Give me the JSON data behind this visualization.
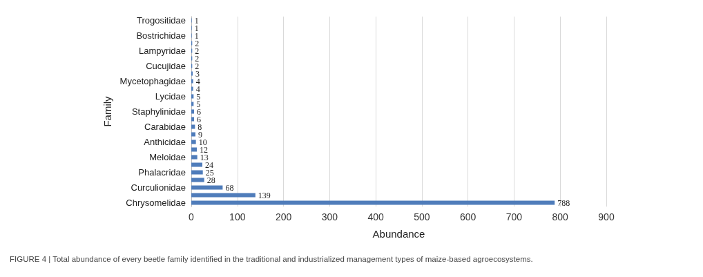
{
  "chart_data": {
    "type": "bar",
    "orientation": "horizontal",
    "xlabel": "Abundance",
    "ylabel": "Family",
    "categories": [
      "Trogositidae",
      null,
      "Bostrichidae",
      null,
      "Lampyridae",
      null,
      "Cucujidae",
      null,
      "Mycetophagidae",
      null,
      "Lycidae",
      null,
      "Staphylinidae",
      null,
      "Carabidae",
      null,
      "Anthicidae",
      null,
      "Meloidae",
      null,
      "Phalacridae",
      null,
      "Curculionidae",
      null,
      "Chrysomelidae"
    ],
    "values": [
      1,
      1,
      1,
      2,
      2,
      2,
      2,
      3,
      4,
      4,
      5,
      5,
      6,
      6,
      8,
      9,
      10,
      12,
      13,
      24,
      25,
      28,
      68,
      139,
      788
    ],
    "color": "#4f7cba",
    "xlim": [
      0,
      900
    ],
    "xticks": [
      0,
      100,
      200,
      300,
      400,
      500,
      600,
      700,
      800,
      900
    ],
    "grid": "x",
    "data_labels": true,
    "annotations": [
      "FIGURE 4 | Total abundance of every beetle family identified in the traditional and industrialized management types of maize-based agroecosystems."
    ]
  }
}
